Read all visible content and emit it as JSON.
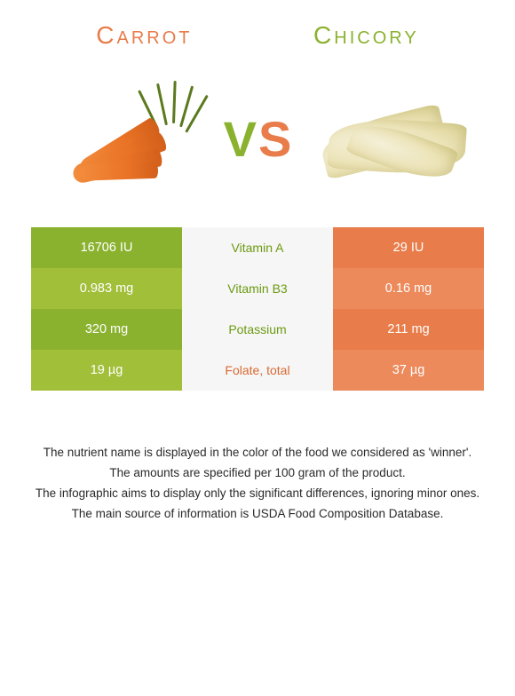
{
  "header": {
    "leftTitle": "Carrot",
    "rightTitle": "Chicory"
  },
  "colors": {
    "left": "#8ab22f",
    "leftAlt": "#a2bf3a",
    "right": "#e87c4a",
    "rightAlt": "#ec8a5c",
    "middleBg": "#f6f6f6",
    "nutrientGreen": "#6c9a12",
    "nutrientOrange": "#d86a33",
    "text": "#2a2a2a"
  },
  "vs": {
    "v": "V",
    "s": "S"
  },
  "rows": [
    {
      "left": "16706 IU",
      "nutrient": "Vitamin A",
      "right": "29 IU",
      "winner": "left"
    },
    {
      "left": "0.983 mg",
      "nutrient": "Vitamin B3",
      "right": "0.16 mg",
      "winner": "left"
    },
    {
      "left": "320 mg",
      "nutrient": "Potassium",
      "right": "211 mg",
      "winner": "left"
    },
    {
      "left": "19 µg",
      "nutrient": "Folate, total",
      "right": "37 µg",
      "winner": "right"
    }
  ],
  "caption": [
    "The nutrient name is displayed in the color of the food we considered as 'winner'.",
    "The amounts are specified per 100 gram of the product.",
    "The infographic aims to display only the significant differences, ignoring minor ones.",
    "The main source of information is USDA Food Composition Database."
  ],
  "illustrations": {
    "carrot": {
      "body": "#ea7326",
      "greens": "#5b7a1e"
    },
    "chicory": {
      "leaf": "#ece3b8"
    }
  }
}
